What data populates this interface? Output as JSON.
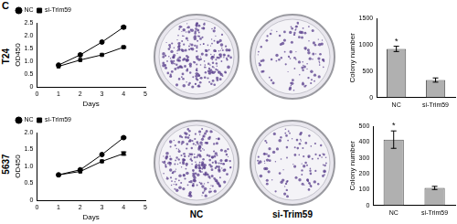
{
  "figure": {
    "panel": "C",
    "row_labels": [
      "T24",
      "5637"
    ],
    "dish_labels": [
      "NC",
      "si-Trim59"
    ]
  },
  "chart_data": [
    {
      "type": "line",
      "x_label": "Days",
      "y_label": "OD450",
      "x": [
        1,
        2,
        3,
        4
      ],
      "series": [
        {
          "name": "NC",
          "color": "#000000",
          "marker": "circle",
          "values": [
            0.85,
            1.25,
            1.75,
            2.33
          ],
          "errors": [
            null,
            null,
            null,
            0.04
          ]
        },
        {
          "name": "si-Trim59",
          "color": "#000000",
          "marker": "square",
          "values": [
            0.8,
            1.05,
            1.25,
            1.55
          ],
          "errors": [
            null,
            null,
            null,
            0.03
          ]
        }
      ],
      "xlim": [
        0,
        5
      ],
      "xticks": [
        0,
        1,
        2,
        3,
        4,
        5
      ],
      "ylim": [
        0,
        2.5
      ],
      "yticks": [
        0,
        0.5,
        {
          "value": 1,
          "label": "1.0"
        },
        1.5,
        {
          "value": 2,
          "label": "2.0"
        },
        2.5
      ],
      "grid": false,
      "legend": "upper left"
    },
    {
      "type": "line",
      "x_label": "Days",
      "y_label": "OD450",
      "x": [
        1,
        2,
        3,
        4
      ],
      "series": [
        {
          "name": "NC",
          "color": "#000000",
          "marker": "circle",
          "values": [
            0.75,
            0.9,
            1.35,
            1.85
          ],
          "errors": [
            null,
            null,
            null,
            0.02
          ]
        },
        {
          "name": "si-Trim59",
          "color": "#000000",
          "marker": "square",
          "values": [
            0.75,
            0.85,
            1.15,
            1.38
          ],
          "errors": [
            null,
            null,
            null,
            0.05
          ]
        }
      ],
      "xlim": [
        0,
        5
      ],
      "xticks": [
        0,
        1,
        2,
        3,
        4,
        5
      ],
      "ylim": [
        0,
        2
      ],
      "yticks": [
        0,
        0.5,
        {
          "value": 1,
          "label": "1.0"
        },
        1.5,
        {
          "value": 2,
          "label": "2.0"
        }
      ],
      "grid": false,
      "legend": "upper left"
    },
    {
      "type": "bar",
      "y_label": "Colony number",
      "categories": [
        "NC",
        "si-Trim59"
      ],
      "values": [
        920,
        330
      ],
      "errors": [
        50,
        40
      ],
      "color": "#b0b0b0",
      "ylim": [
        0,
        1500
      ],
      "yticks": [
        0,
        500,
        1000,
        1500
      ],
      "grid": false,
      "annotations": [
        {
          "category": "NC",
          "text": "*"
        }
      ]
    },
    {
      "type": "bar",
      "y_label": "Colony number",
      "categories": [
        "NC",
        "si-Trim59"
      ],
      "values": [
        415,
        110
      ],
      "errors": [
        55,
        10
      ],
      "color": "#b0b0b0",
      "ylim": [
        0,
        500
      ],
      "yticks": [
        0,
        100,
        200,
        300,
        400,
        500
      ],
      "grid": false,
      "annotations": [
        {
          "category": "NC",
          "text": "*"
        }
      ]
    }
  ]
}
